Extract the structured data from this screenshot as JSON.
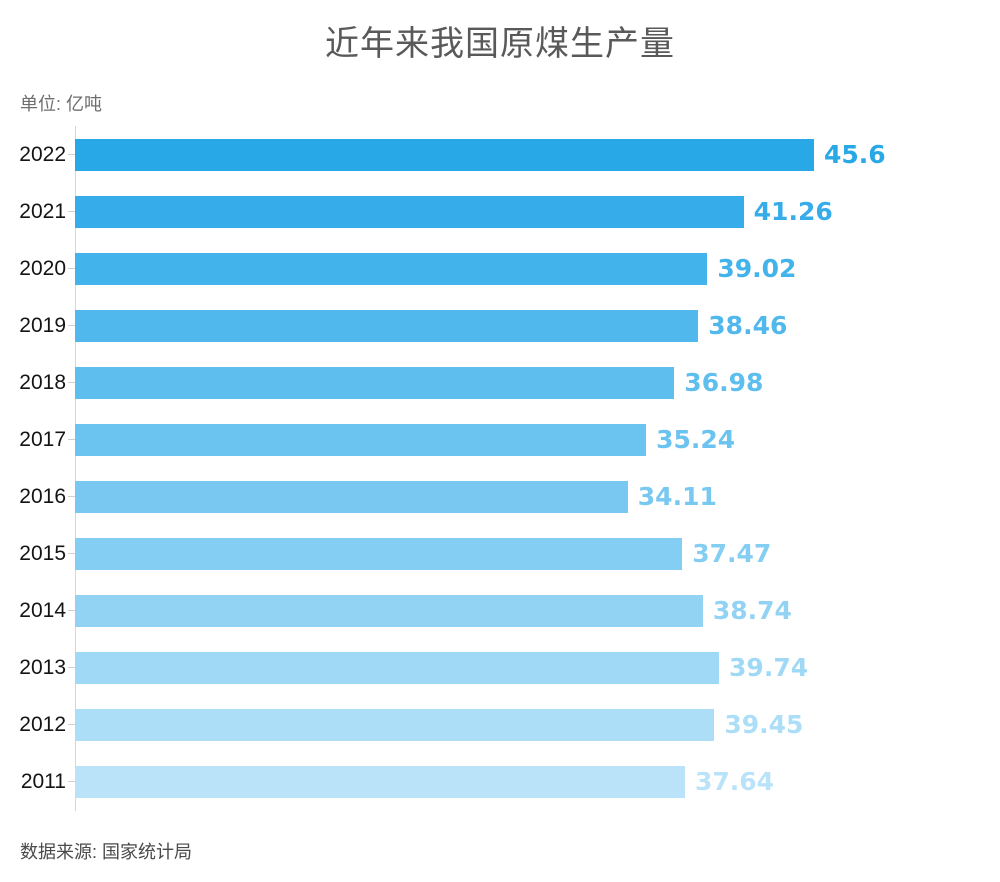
{
  "title": "近年来我国原煤生产量",
  "unit_label": "单位: 亿吨",
  "source_note": "数据来源: 国家统计局",
  "colors": {
    "title_text": "#595959",
    "unit_text": "#6e6e6e",
    "year_text": "#141414",
    "axis_line": "#d6d6d6",
    "source_text": "#4a4a4a"
  },
  "chart_data": {
    "type": "bar",
    "orientation": "horizontal",
    "title": "近年来我国原煤生产量",
    "unit": "亿吨",
    "xlabel": "",
    "ylabel": "",
    "xlim": [
      0,
      45.6
    ],
    "grid": false,
    "legend": false,
    "value_labels_shown": true,
    "categories": [
      "2022",
      "2021",
      "2020",
      "2019",
      "2018",
      "2017",
      "2016",
      "2015",
      "2014",
      "2013",
      "2012",
      "2011"
    ],
    "values": [
      45.6,
      41.26,
      39.02,
      38.46,
      36.98,
      35.24,
      34.11,
      37.47,
      38.74,
      39.74,
      39.45,
      37.64
    ],
    "bar_colors": [
      "#29A8E8",
      "#36ADEA",
      "#43B3EB",
      "#50B8ED",
      "#5EBEEE",
      "#6BC3F0",
      "#78C8F1",
      "#85CEF3",
      "#92D3F4",
      "#9FD9F6",
      "#ACDEF7",
      "#BAE3FA"
    ]
  }
}
